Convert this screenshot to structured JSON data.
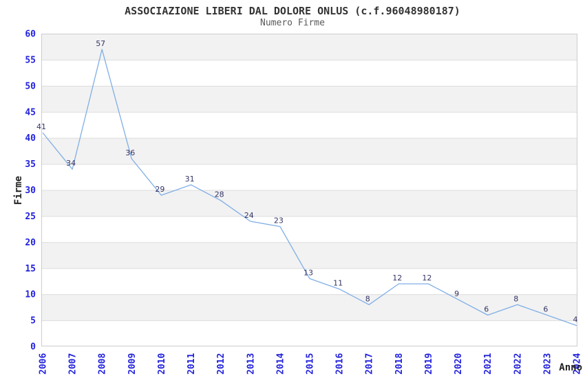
{
  "header": {
    "title": "ASSOCIAZIONE LIBERI DAL DOLORE ONLUS (c.f.96048980187)",
    "subtitle": "Numero Firme"
  },
  "chart_data": {
    "type": "line",
    "title": "ASSOCIAZIONE LIBERI DAL DOLORE ONLUS (c.f.96048980187)",
    "subtitle": "Numero Firme",
    "xlabel": "Anno",
    "ylabel": "Firme",
    "x": [
      2006,
      2007,
      2008,
      2009,
      2010,
      2011,
      2012,
      2013,
      2014,
      2015,
      2016,
      2017,
      2018,
      2019,
      2020,
      2021,
      2022,
      2023,
      2024
    ],
    "values": [
      41,
      34,
      57,
      36,
      29,
      31,
      28,
      24,
      23,
      13,
      11,
      8,
      12,
      12,
      9,
      6,
      8,
      6,
      4
    ],
    "ylim": [
      0,
      60
    ],
    "ytick_step": 5,
    "legend": "none",
    "grid": "horizontal gridlines every 5 with alternating gray/white bands",
    "markers": "none",
    "data_labels_shown": true,
    "x_labels_rotated_degrees": 90
  },
  "colors": {
    "line": "#7FAEE6",
    "tick_label_blue": "#2222DD",
    "data_label_navy": "#333366",
    "band_gray": "#F2F2F2",
    "gridline": "#DCDCDC",
    "frame": "#CCCCCC",
    "title_text": "#333333",
    "subtitle_text": "#595959",
    "axis_title_text": "#222222"
  }
}
